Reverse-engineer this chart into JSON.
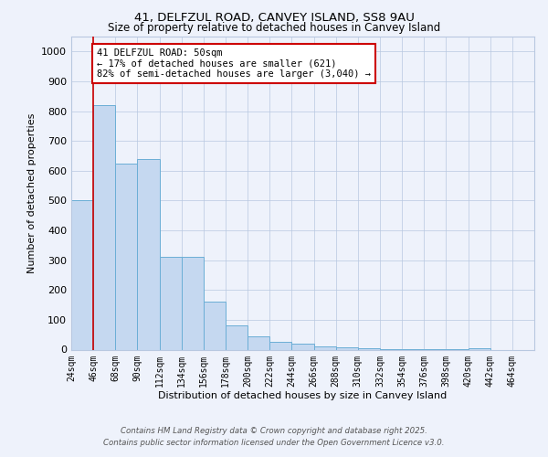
{
  "title1": "41, DELFZUL ROAD, CANVEY ISLAND, SS8 9AU",
  "title2": "Size of property relative to detached houses in Canvey Island",
  "xlabel": "Distribution of detached houses by size in Canvey Island",
  "ylabel": "Number of detached properties",
  "bin_labels": [
    "24sqm",
    "46sqm",
    "68sqm",
    "90sqm",
    "112sqm",
    "134sqm",
    "156sqm",
    "178sqm",
    "200sqm",
    "222sqm",
    "244sqm",
    "266sqm",
    "288sqm",
    "310sqm",
    "332sqm",
    "354sqm",
    "376sqm",
    "398sqm",
    "420sqm",
    "442sqm",
    "464sqm"
  ],
  "bar_values": [
    500,
    820,
    625,
    640,
    310,
    310,
    160,
    80,
    45,
    25,
    20,
    10,
    8,
    5,
    3,
    3,
    2,
    1,
    5,
    0,
    0
  ],
  "bar_color": "#c5d8f0",
  "bar_edge_color": "#6baed6",
  "bar_width": 1.0,
  "property_line_x": 1,
  "annotation_text": "41 DELFZUL ROAD: 50sqm\n← 17% of detached houses are smaller (621)\n82% of semi-detached houses are larger (3,040) →",
  "annotation_box_color": "#ffffff",
  "annotation_box_edge": "#cc0000",
  "red_line_color": "#cc0000",
  "ylim": [
    0,
    1050
  ],
  "yticks": [
    0,
    100,
    200,
    300,
    400,
    500,
    600,
    700,
    800,
    900,
    1000
  ],
  "footer_line1": "Contains HM Land Registry data © Crown copyright and database right 2025.",
  "footer_line2": "Contains public sector information licensed under the Open Government Licence v3.0.",
  "bg_color": "#eef2fb",
  "plot_bg_color": "#eef2fb"
}
